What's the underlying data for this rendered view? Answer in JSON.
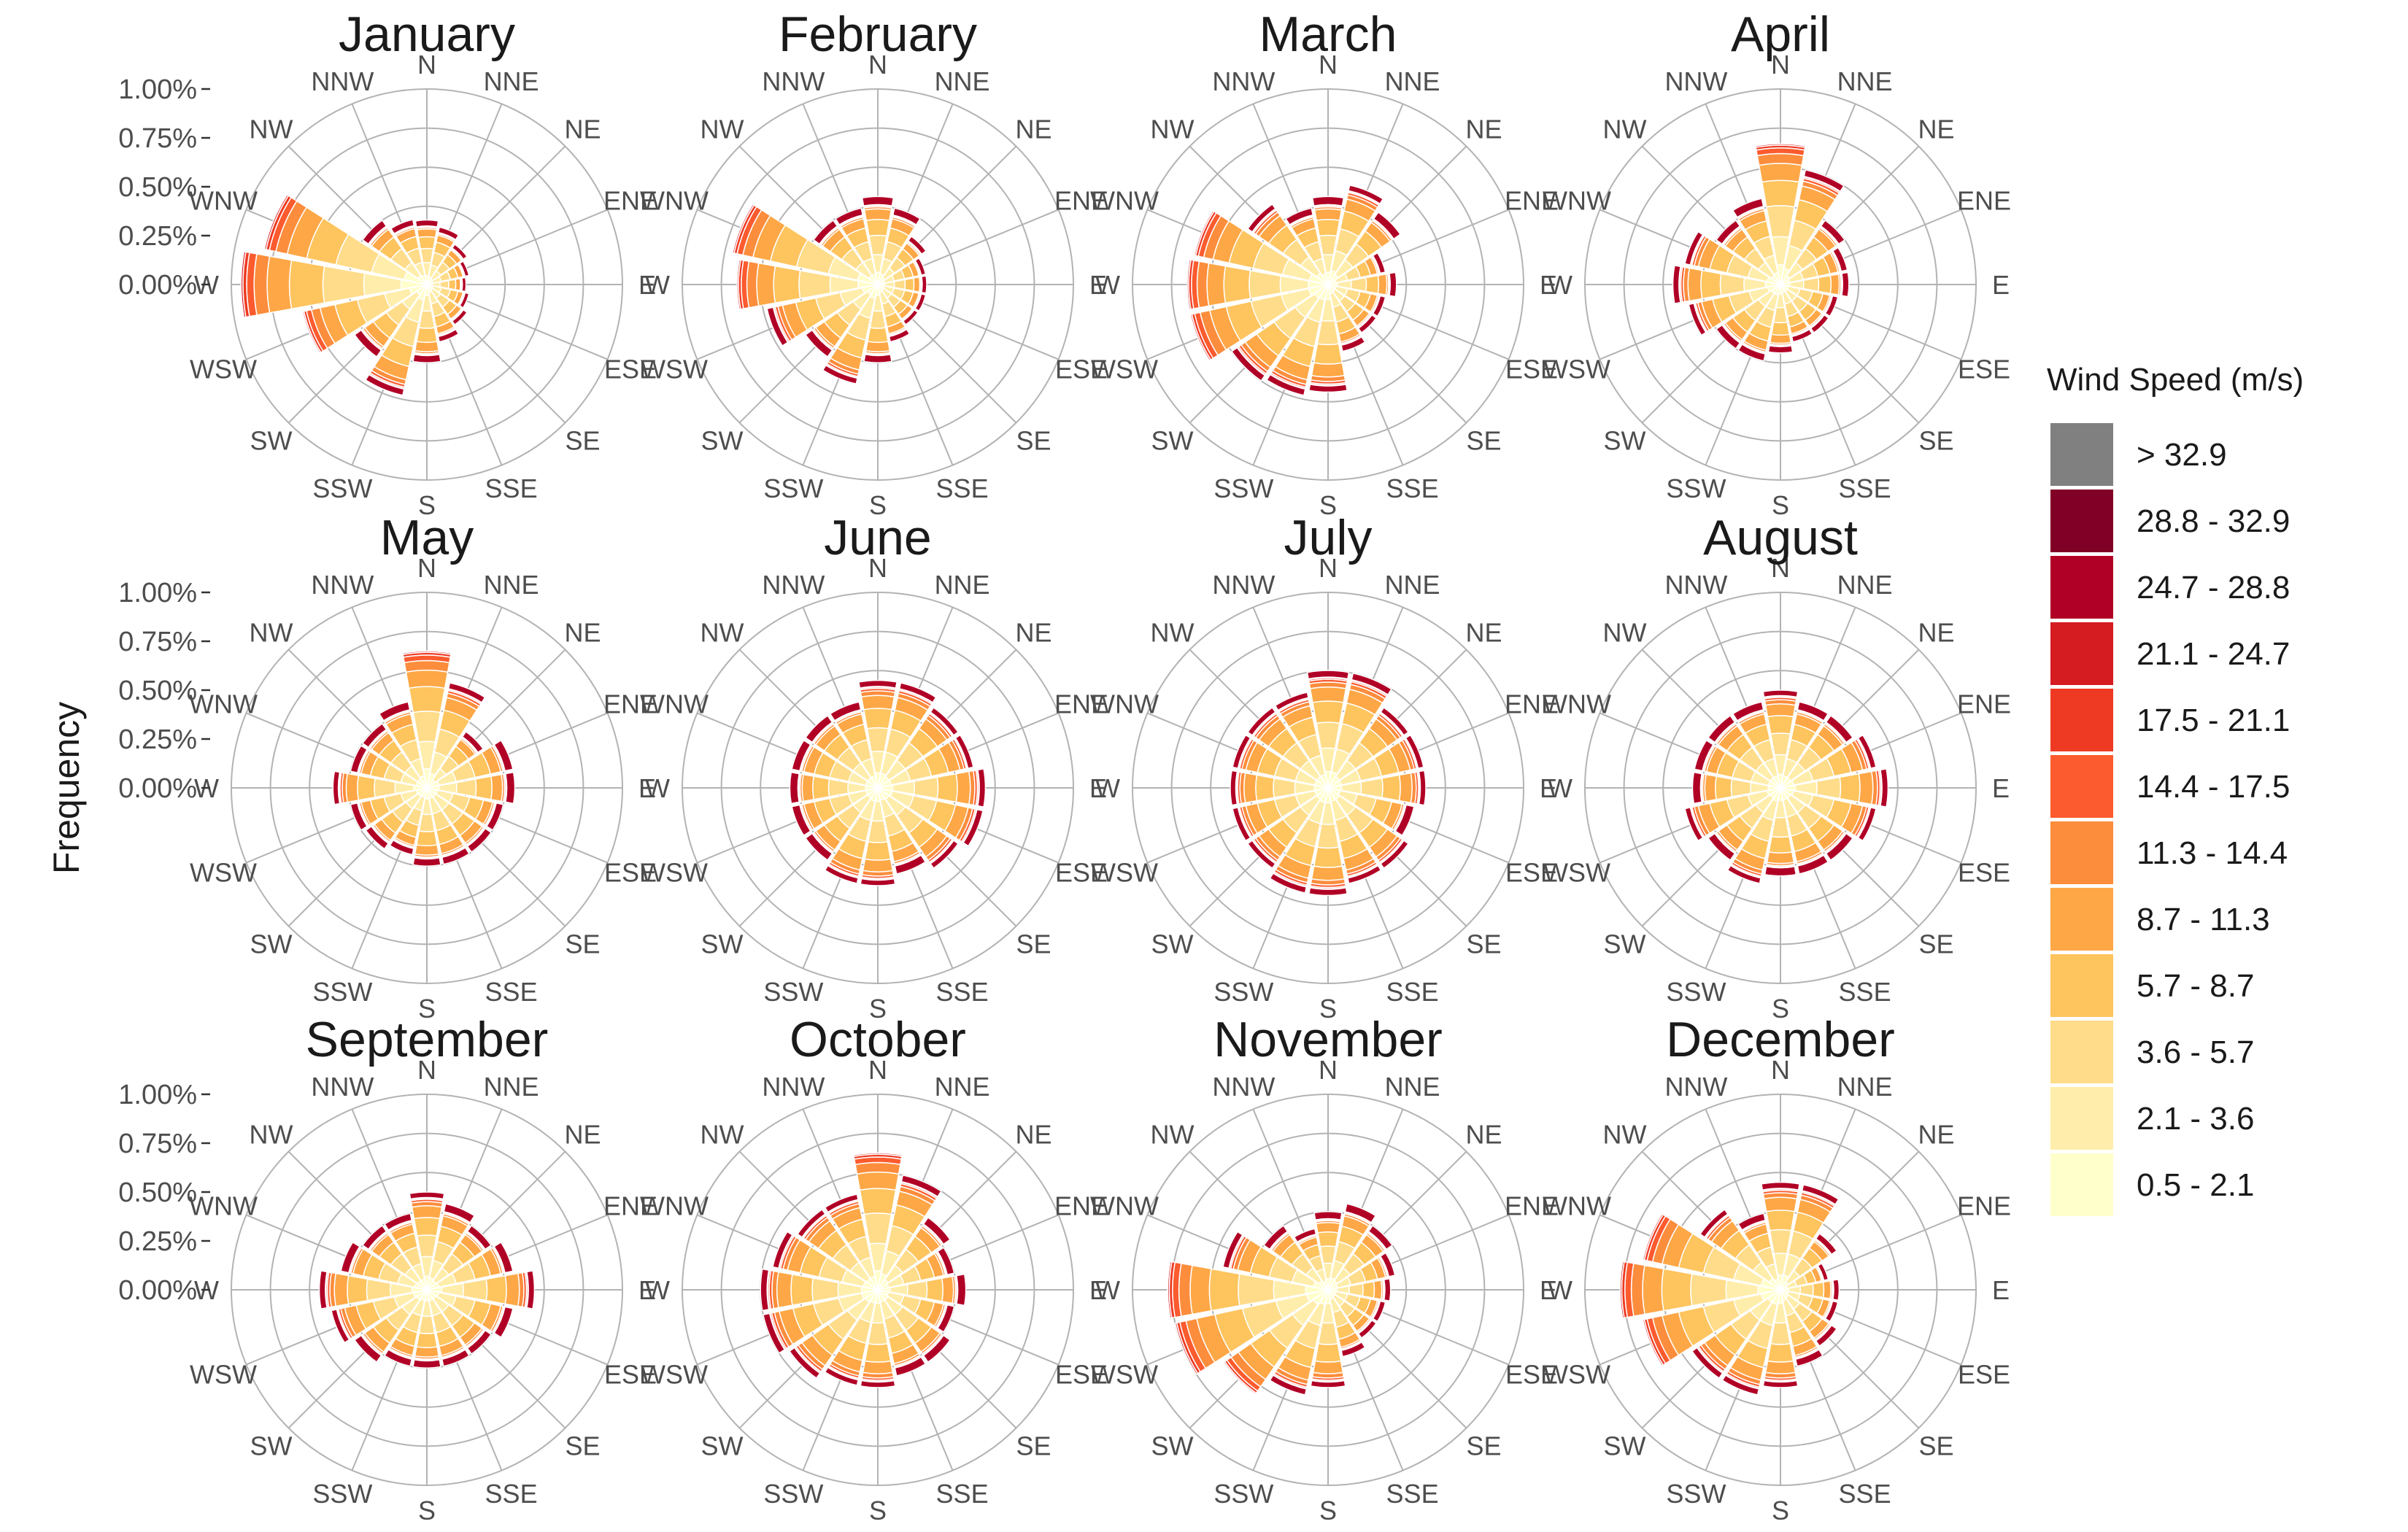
{
  "chart_data": {
    "type": "wind-rose",
    "ylabel": "Frequency",
    "ylim": [
      0,
      1.0
    ],
    "radial_ticks": [
      "0.00%",
      "0.25%",
      "0.50%",
      "0.75%",
      "1.00%"
    ],
    "directions": [
      "N",
      "NNE",
      "NE",
      "ENE",
      "E",
      "ESE",
      "SE",
      "SSE",
      "S",
      "SSW",
      "SW",
      "WSW",
      "W",
      "WNW",
      "NW",
      "NNW"
    ],
    "legend": {
      "title": "Wind Speed (m/s)",
      "position": "right",
      "bins": [
        {
          "label": "> 32.9",
          "color": "#808080"
        },
        {
          "label": "28.8 - 32.9",
          "color": "#800026"
        },
        {
          "label": "24.7 - 28.8",
          "color": "#b10026"
        },
        {
          "label": "21.1 - 24.7",
          "color": "#d41c21"
        },
        {
          "label": "17.5 - 21.1",
          "color": "#ee3a22"
        },
        {
          "label": "14.4 - 17.5",
          "color": "#fb5b2e"
        },
        {
          "label": "11.3 - 14.4",
          "color": "#fc8d3c"
        },
        {
          "label": "8.7 - 11.3",
          "color": "#fea746"
        },
        {
          "label": "5.7 - 8.7",
          "color": "#fec45e"
        },
        {
          "label": "3.6 - 5.7",
          "color": "#fedc8a"
        },
        {
          "label": "2.1 - 3.6",
          "color": "#ffedab"
        },
        {
          "label": "0.5 - 2.1",
          "color": "#ffffcc"
        }
      ]
    },
    "months": [
      {
        "title": "January",
        "totals": [
          0.33,
          0.3,
          0.25,
          0.22,
          0.2,
          0.22,
          0.25,
          0.3,
          0.4,
          0.58,
          0.45,
          0.65,
          0.95,
          0.85,
          0.4,
          0.34
        ]
      },
      {
        "title": "February",
        "totals": [
          0.45,
          0.4,
          0.3,
          0.25,
          0.25,
          0.25,
          0.25,
          0.3,
          0.4,
          0.52,
          0.45,
          0.58,
          0.72,
          0.76,
          0.4,
          0.4
        ]
      },
      {
        "title": "March",
        "totals": [
          0.45,
          0.52,
          0.45,
          0.3,
          0.35,
          0.3,
          0.3,
          0.35,
          0.55,
          0.58,
          0.6,
          0.72,
          0.72,
          0.7,
          0.5,
          0.4
        ]
      },
      {
        "title": "April",
        "totals": [
          0.72,
          0.6,
          0.4,
          0.35,
          0.35,
          0.3,
          0.3,
          0.3,
          0.35,
          0.4,
          0.4,
          0.48,
          0.55,
          0.5,
          0.4,
          0.45
        ]
      },
      {
        "title": "May",
        "totals": [
          0.7,
          0.55,
          0.35,
          0.45,
          0.45,
          0.4,
          0.4,
          0.4,
          0.4,
          0.35,
          0.38,
          0.4,
          0.48,
          0.4,
          0.4,
          0.45
        ]
      },
      {
        "title": "June",
        "totals": [
          0.55,
          0.55,
          0.5,
          0.5,
          0.55,
          0.55,
          0.5,
          0.45,
          0.5,
          0.5,
          0.45,
          0.45,
          0.45,
          0.45,
          0.45,
          0.45
        ]
      },
      {
        "title": "July",
        "totals": [
          0.6,
          0.6,
          0.5,
          0.5,
          0.5,
          0.45,
          0.5,
          0.5,
          0.55,
          0.55,
          0.5,
          0.5,
          0.5,
          0.5,
          0.5,
          0.5
        ]
      },
      {
        "title": "August",
        "totals": [
          0.5,
          0.45,
          0.45,
          0.5,
          0.55,
          0.5,
          0.45,
          0.45,
          0.45,
          0.5,
          0.45,
          0.5,
          0.45,
          0.45,
          0.45,
          0.45
        ]
      },
      {
        "title": "September",
        "totals": [
          0.5,
          0.45,
          0.4,
          0.45,
          0.55,
          0.45,
          0.4,
          0.4,
          0.4,
          0.4,
          0.45,
          0.5,
          0.55,
          0.45,
          0.4,
          0.4
        ]
      },
      {
        "title": "October",
        "totals": [
          0.7,
          0.6,
          0.45,
          0.4,
          0.45,
          0.4,
          0.45,
          0.45,
          0.5,
          0.5,
          0.55,
          0.6,
          0.6,
          0.55,
          0.5,
          0.5
        ]
      },
      {
        "title": "November",
        "totals": [
          0.4,
          0.45,
          0.4,
          0.35,
          0.32,
          0.3,
          0.3,
          0.35,
          0.5,
          0.55,
          0.65,
          0.8,
          0.82,
          0.55,
          0.4,
          0.32
        ]
      },
      {
        "title": "December",
        "totals": [
          0.55,
          0.55,
          0.35,
          0.25,
          0.3,
          0.3,
          0.35,
          0.4,
          0.5,
          0.55,
          0.55,
          0.72,
          0.82,
          0.72,
          0.5,
          0.4
        ]
      }
    ]
  }
}
